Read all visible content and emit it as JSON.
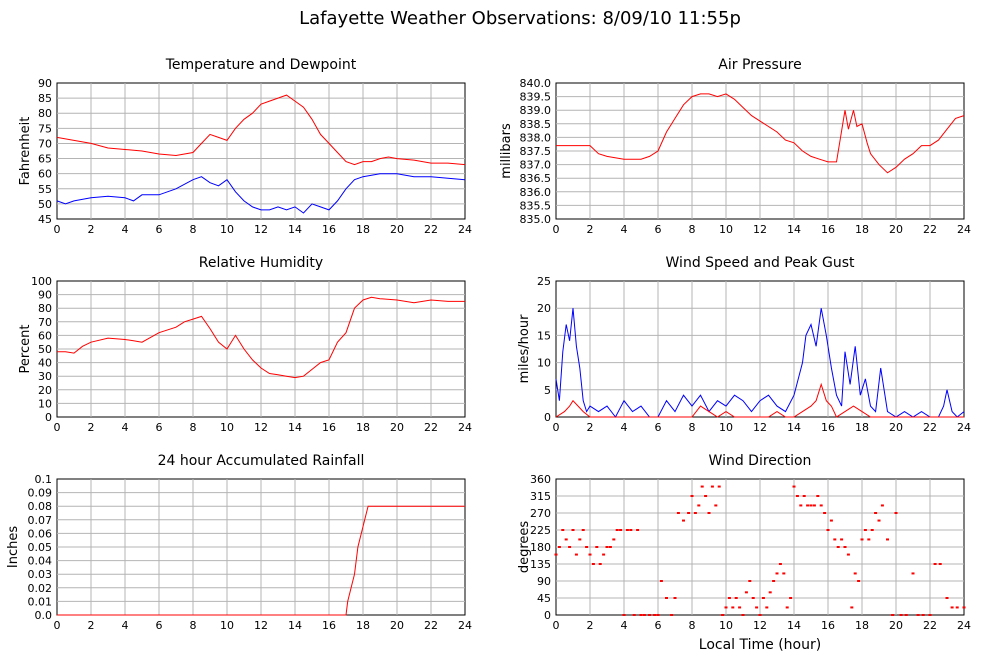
{
  "title": "Lafayette Weather Observations: 8/09/10 11:55p",
  "xlabel_bottom": "Local Time (hour)",
  "colors": {
    "red": "#ff0000",
    "blue": "#0000ff",
    "grid": "#b4b4b4"
  },
  "chart_data": [
    {
      "id": "temp",
      "type": "line",
      "title": "Temperature and Dewpoint",
      "ylabel": "Fahrenheit",
      "xlabel": "",
      "xlim": [
        0,
        24
      ],
      "ylim": [
        45,
        90
      ],
      "xticks": [
        "0",
        "2",
        "4",
        "6",
        "8",
        "10",
        "12",
        "14",
        "16",
        "18",
        "20",
        "22",
        "24"
      ],
      "yticks": [
        "45",
        "50",
        "55",
        "60",
        "65",
        "70",
        "75",
        "80",
        "85",
        "90"
      ],
      "series": [
        {
          "color": "#ff0000",
          "x": [
            0,
            1,
            2,
            3,
            4,
            5,
            6,
            7,
            8,
            8.5,
            9,
            9.5,
            10,
            10.5,
            11,
            11.5,
            12,
            12.5,
            13,
            13.5,
            14,
            14.5,
            15,
            15.5,
            16,
            16.5,
            17,
            17.5,
            18,
            18.5,
            19,
            19.5,
            20,
            21,
            22,
            23,
            24
          ],
          "y": [
            72,
            71,
            70,
            68.5,
            68,
            67.5,
            66.5,
            66,
            67,
            70,
            73,
            72,
            71,
            75,
            78,
            80,
            83,
            84,
            85,
            86,
            84,
            82,
            78,
            73,
            70,
            67,
            64,
            63,
            64,
            64,
            65,
            65.5,
            65,
            64.5,
            63.5,
            63.5,
            63
          ]
        },
        {
          "color": "#0000ff",
          "x": [
            0,
            0.5,
            1,
            2,
            3,
            4,
            4.5,
            5,
            6,
            7,
            8,
            8.5,
            9,
            9.5,
            10,
            10.5,
            11,
            11.5,
            12,
            12.5,
            13,
            13.5,
            14,
            14.5,
            15,
            15.5,
            16,
            16.5,
            17,
            17.5,
            18,
            19,
            20,
            21,
            22,
            23,
            24
          ],
          "y": [
            51,
            50,
            51,
            52,
            52.5,
            52,
            51,
            53,
            53,
            55,
            58,
            59,
            57,
            56,
            58,
            54,
            51,
            49,
            48,
            48,
            49,
            48,
            49,
            47,
            50,
            49,
            48,
            51,
            55,
            58,
            59,
            60,
            60,
            59,
            59,
            58.5,
            58
          ]
        }
      ]
    },
    {
      "id": "pressure",
      "type": "line",
      "title": "Air Pressure",
      "ylabel": "millibars",
      "xlabel": "",
      "xlim": [
        0,
        24
      ],
      "ylim": [
        835.0,
        840.0
      ],
      "xticks": [
        "0",
        "2",
        "4",
        "6",
        "8",
        "10",
        "12",
        "14",
        "16",
        "18",
        "20",
        "22",
        "24"
      ],
      "yticks": [
        "835.0",
        "835.5",
        "836.0",
        "836.5",
        "837.0",
        "837.5",
        "838.0",
        "838.5",
        "839.0",
        "839.5",
        "840.0"
      ],
      "series": [
        {
          "color": "#ff0000",
          "x": [
            0,
            1,
            2,
            2.5,
            3,
            4,
            5,
            5.5,
            6,
            6.5,
            7,
            7.5,
            8,
            8.5,
            9,
            9.5,
            10,
            10.5,
            11,
            11.5,
            12,
            12.5,
            13,
            13.5,
            14,
            14.5,
            15,
            15.5,
            16,
            16.5,
            17,
            17.2,
            17.5,
            17.7,
            18,
            18.3,
            18.5,
            19,
            19.5,
            20,
            20.5,
            21,
            21.5,
            22,
            22.5,
            23,
            23.5,
            24
          ],
          "y": [
            837.7,
            837.7,
            837.7,
            837.4,
            837.3,
            837.2,
            837.2,
            837.3,
            837.5,
            838.2,
            838.7,
            839.2,
            839.5,
            839.6,
            839.6,
            839.5,
            839.6,
            839.4,
            839.1,
            838.8,
            838.6,
            838.4,
            838.2,
            837.9,
            837.8,
            837.5,
            837.3,
            837.2,
            837.1,
            837.1,
            839.0,
            838.3,
            839.0,
            838.4,
            838.5,
            837.8,
            837.4,
            837.0,
            836.7,
            836.9,
            837.2,
            837.4,
            837.7,
            837.7,
            837.9,
            838.3,
            838.7,
            838.8
          ]
        }
      ]
    },
    {
      "id": "humidity",
      "type": "line",
      "title": "Relative Humidity",
      "ylabel": "Percent",
      "xlabel": "",
      "xlim": [
        0,
        24
      ],
      "ylim": [
        0,
        100
      ],
      "xticks": [
        "0",
        "2",
        "4",
        "6",
        "8",
        "10",
        "12",
        "14",
        "16",
        "18",
        "20",
        "22",
        "24"
      ],
      "yticks": [
        "0",
        "10",
        "20",
        "30",
        "40",
        "50",
        "60",
        "70",
        "80",
        "90",
        "100"
      ],
      "series": [
        {
          "color": "#ff0000",
          "x": [
            0,
            0.5,
            1,
            1.5,
            2,
            3,
            4,
            4.5,
            5,
            6,
            7,
            7.5,
            8,
            8.5,
            9,
            9.5,
            10,
            10.5,
            11,
            11.5,
            12,
            12.5,
            13,
            13.5,
            14,
            14.5,
            15,
            15.5,
            16,
            16.5,
            17,
            17.5,
            18,
            18.5,
            19,
            20,
            21,
            22,
            23,
            24
          ],
          "y": [
            48,
            48,
            47,
            52,
            55,
            58,
            57,
            56,
            55,
            62,
            66,
            70,
            72,
            74,
            65,
            55,
            50,
            60,
            50,
            42,
            36,
            32,
            31,
            30,
            29,
            30,
            35,
            40,
            42,
            55,
            62,
            80,
            86,
            88,
            87,
            86,
            84,
            86,
            85,
            85
          ]
        }
      ]
    },
    {
      "id": "wind",
      "type": "line",
      "title": "Wind Speed and Peak Gust",
      "ylabel": "miles/hour",
      "xlabel": "",
      "xlim": [
        0,
        24
      ],
      "ylim": [
        0,
        25
      ],
      "xticks": [
        "0",
        "2",
        "4",
        "6",
        "8",
        "10",
        "12",
        "14",
        "16",
        "18",
        "20",
        "22",
        "24"
      ],
      "yticks": [
        "0",
        "5",
        "10",
        "15",
        "20",
        "25"
      ],
      "series": [
        {
          "color": "#0000ff",
          "x": [
            0,
            0.2,
            0.4,
            0.6,
            0.8,
            1,
            1.2,
            1.4,
            1.6,
            1.8,
            2,
            2.5,
            3,
            3.5,
            4,
            4.5,
            5,
            5.5,
            6,
            6.5,
            7,
            7.5,
            8,
            8.5,
            9,
            9.5,
            10,
            10.5,
            11,
            11.5,
            12,
            12.5,
            13,
            13.5,
            14,
            14.5,
            14.7,
            15,
            15.3,
            15.6,
            15.9,
            16.2,
            16.5,
            16.8,
            17,
            17.3,
            17.6,
            17.9,
            18.2,
            18.5,
            18.8,
            19.1,
            19.5,
            20,
            20.5,
            21,
            21.5,
            22,
            22.5,
            22.8,
            23,
            23.3,
            23.6,
            24
          ],
          "y": [
            7,
            3,
            12,
            17,
            14,
            20,
            13,
            9,
            3,
            1,
            2,
            1,
            2,
            0,
            3,
            1,
            2,
            0,
            0,
            3,
            1,
            4,
            2,
            4,
            1,
            3,
            2,
            4,
            3,
            1,
            3,
            4,
            2,
            1,
            4,
            10,
            15,
            17,
            13,
            20,
            15,
            9,
            4,
            2,
            12,
            6,
            13,
            4,
            7,
            2,
            1,
            9,
            1,
            0,
            1,
            0,
            1,
            0,
            0,
            2,
            5,
            1,
            0,
            1
          ]
        },
        {
          "color": "#ff0000",
          "x": [
            0,
            0.5,
            0.8,
            1,
            1.3,
            1.6,
            2,
            3,
            4,
            5,
            6,
            7,
            8,
            8.5,
            9,
            9.5,
            10,
            10.5,
            11,
            11.5,
            12,
            12.5,
            13,
            13.5,
            14,
            14.5,
            15,
            15.3,
            15.6,
            15.9,
            16.2,
            16.5,
            17,
            17.5,
            18,
            18.5,
            19,
            20,
            21,
            22,
            23,
            24
          ],
          "y": [
            0,
            1,
            2,
            3,
            2,
            1,
            0,
            0,
            0,
            0,
            0,
            0,
            0,
            2,
            1,
            0,
            1,
            0,
            0,
            0,
            0,
            0,
            1,
            0,
            0,
            1,
            2,
            3,
            6,
            3,
            2,
            0,
            1,
            2,
            1,
            0,
            0,
            0,
            0,
            0,
            0,
            0
          ]
        }
      ]
    },
    {
      "id": "rain",
      "type": "line",
      "title": "24 hour Accumulated Rainfall",
      "ylabel": "Inches",
      "xlabel": "",
      "xlim": [
        0,
        24
      ],
      "ylim": [
        0,
        0.1
      ],
      "xticks": [
        "0",
        "2",
        "4",
        "6",
        "8",
        "10",
        "12",
        "14",
        "16",
        "18",
        "20",
        "22",
        "24"
      ],
      "yticks": [
        "0.0",
        "0.01",
        "0.02",
        "0.03",
        "0.04",
        "0.05",
        "0.06",
        "0.07",
        "0.08",
        "0.09",
        "0.1"
      ],
      "series": [
        {
          "color": "#ff0000",
          "x": [
            0,
            17,
            17.1,
            17.3,
            17.5,
            17.7,
            17.9,
            18.1,
            18.3,
            24
          ],
          "y": [
            0,
            0,
            0.01,
            0.02,
            0.03,
            0.05,
            0.06,
            0.07,
            0.08,
            0.08
          ]
        }
      ]
    },
    {
      "id": "direction",
      "type": "scatter",
      "title": "Wind Direction",
      "ylabel": "degrees",
      "xlabel": "Local Time (hour)",
      "xlim": [
        0,
        24
      ],
      "ylim": [
        0,
        360
      ],
      "xticks": [
        "0",
        "2",
        "4",
        "6",
        "8",
        "10",
        "12",
        "14",
        "16",
        "18",
        "20",
        "22",
        "24"
      ],
      "yticks": [
        "0",
        "45",
        "90",
        "135",
        "180",
        "225",
        "270",
        "315",
        "360"
      ],
      "series": [
        {
          "color": "#ff0000",
          "x": [
            0,
            0.2,
            0.4,
            0.6,
            0.8,
            1,
            1.2,
            1.4,
            1.6,
            1.8,
            2,
            2.2,
            2.4,
            2.6,
            2.8,
            3,
            3.2,
            3.4,
            3.6,
            3.8,
            4,
            4.2,
            4.4,
            4.6,
            4.8,
            5,
            5.2,
            5.5,
            5.8,
            6,
            6.2,
            6.5,
            6.8,
            7,
            7.2,
            7.5,
            7.8,
            8,
            8.2,
            8.4,
            8.6,
            8.8,
            9,
            9.2,
            9.4,
            9.6,
            9.8,
            10,
            10.2,
            10.4,
            10.6,
            10.8,
            11,
            11.2,
            11.4,
            11.6,
            11.8,
            12,
            12.2,
            12.4,
            12.6,
            12.8,
            13,
            13.2,
            13.4,
            13.6,
            13.8,
            14,
            14.2,
            14.4,
            14.6,
            14.8,
            15,
            15.2,
            15.4,
            15.6,
            15.8,
            16,
            16.2,
            16.4,
            16.6,
            16.8,
            17,
            17.2,
            17.4,
            17.6,
            17.8,
            18,
            18.2,
            18.4,
            18.6,
            18.8,
            19,
            19.2,
            19.5,
            19.8,
            20,
            20.3,
            20.6,
            21,
            21.3,
            21.6,
            22,
            22.3,
            22.6,
            23,
            23.3,
            23.6,
            24
          ],
          "y": [
            160,
            180,
            225,
            200,
            180,
            225,
            160,
            200,
            225,
            180,
            160,
            135,
            180,
            135,
            160,
            180,
            180,
            200,
            225,
            225,
            0,
            225,
            225,
            0,
            225,
            0,
            0,
            0,
            0,
            0,
            90,
            45,
            0,
            45,
            270,
            250,
            270,
            315,
            270,
            290,
            340,
            315,
            270,
            340,
            290,
            340,
            0,
            20,
            45,
            20,
            45,
            20,
            0,
            60,
            90,
            45,
            20,
            0,
            45,
            20,
            60,
            90,
            110,
            135,
            110,
            20,
            45,
            340,
            315,
            290,
            315,
            290,
            290,
            290,
            315,
            290,
            270,
            225,
            250,
            200,
            180,
            200,
            180,
            160,
            20,
            110,
            90,
            200,
            225,
            200,
            225,
            270,
            250,
            290,
            200,
            0,
            270,
            0,
            0,
            110,
            0,
            0,
            0,
            135,
            135,
            45,
            20,
            20,
            20
          ]
        }
      ]
    }
  ]
}
